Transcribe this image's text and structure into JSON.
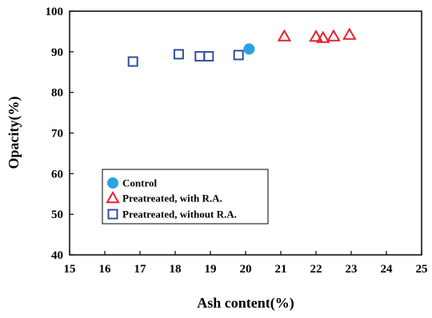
{
  "chart_data": {
    "type": "scatter",
    "xlabel": "Ash content(%)",
    "ylabel": "Opacity(%)",
    "xlim": [
      15,
      25
    ],
    "ylim": [
      40,
      100
    ],
    "x_ticks": [
      "15",
      "16",
      "17",
      "18",
      "19",
      "20",
      "21",
      "22",
      "23",
      "24",
      "25"
    ],
    "y_ticks": [
      "40",
      "50",
      "60",
      "70",
      "80",
      "90",
      "100"
    ],
    "grid": false,
    "legend_position": "bottom-left",
    "series": [
      {
        "name": "Control",
        "marker": "filled-circle",
        "color": "#29a3e0",
        "points": [
          {
            "x": 20.1,
            "y": 90.7
          }
        ]
      },
      {
        "name": "Preatreated, with R.A.",
        "marker": "open-triangle",
        "color": "#e8212b",
        "points": [
          {
            "x": 21.1,
            "y": 93.8
          },
          {
            "x": 22.0,
            "y": 93.7
          },
          {
            "x": 22.2,
            "y": 93.4
          },
          {
            "x": 22.5,
            "y": 93.8
          },
          {
            "x": 22.95,
            "y": 94.2
          }
        ]
      },
      {
        "name": "Preatreated, without R.A.",
        "marker": "open-square",
        "color": "#2f4f9e",
        "points": [
          {
            "x": 16.8,
            "y": 87.6
          },
          {
            "x": 18.1,
            "y": 89.4
          },
          {
            "x": 18.7,
            "y": 88.9
          },
          {
            "x": 18.95,
            "y": 88.9
          },
          {
            "x": 19.8,
            "y": 89.2
          }
        ]
      }
    ]
  }
}
